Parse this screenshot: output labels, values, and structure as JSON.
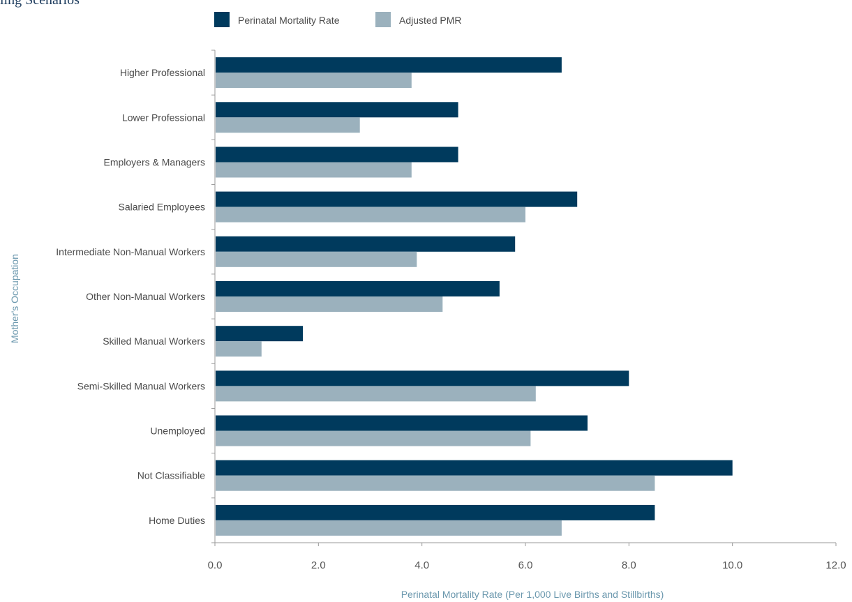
{
  "header_fragment": "ling Scenarios",
  "chart_data": {
    "type": "bar",
    "orientation": "horizontal",
    "title": "",
    "xlabel": "Perinatal Mortality Rate (Per 1,000 Live Births and Stillbirths)",
    "ylabel": "Mother's Occupation",
    "xlim": [
      0,
      12
    ],
    "x_ticks": [
      "0.0",
      "2.0",
      "4.0",
      "6.0",
      "8.0",
      "10.0",
      "12.0"
    ],
    "grid": false,
    "legend_position": "top",
    "categories": [
      "Higher Professional",
      "Lower Professional",
      "Employers & Managers",
      "Salaried Employees",
      "Intermediate Non-Manual Workers",
      "Other Non-Manual Workers",
      "Skilled Manual Workers",
      "Semi-Skilled Manual Workers",
      "Unemployed",
      "Not Classifiable",
      "Home Duties"
    ],
    "series": [
      {
        "name": "Perinatal Mortality Rate",
        "color": "#003a5d",
        "values": [
          6.7,
          4.7,
          4.7,
          7.0,
          5.8,
          5.5,
          1.7,
          8.0,
          7.2,
          10.0,
          8.5
        ]
      },
      {
        "name": "Adjusted PMR",
        "color": "#9bb1bd",
        "values": [
          3.8,
          2.8,
          3.8,
          6.0,
          3.9,
          4.4,
          0.9,
          6.2,
          6.1,
          8.5,
          6.7
        ]
      }
    ]
  }
}
